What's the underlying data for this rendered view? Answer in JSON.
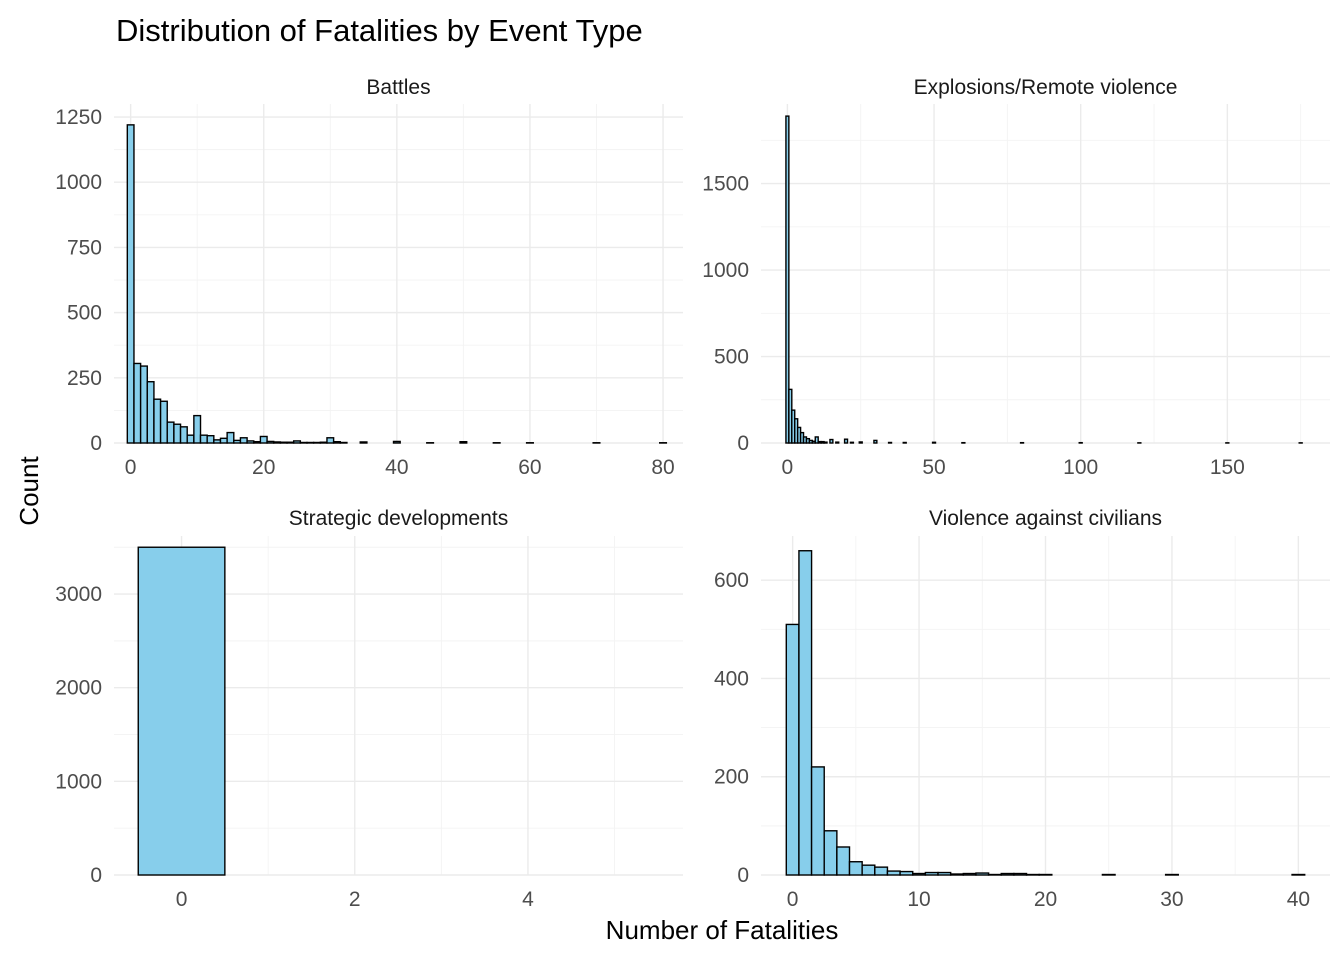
{
  "title": "Distribution of Fatalities by Event Type",
  "xlabel": "Number of Fatalities",
  "ylabel": "Count",
  "bar_fill": "#87CEEB",
  "bar_outline": "#000000",
  "chart_data": [
    {
      "type": "bar",
      "panel": "Battles",
      "binwidth": 1,
      "xlim": [
        -2.5,
        83
      ],
      "ylim": [
        0,
        1300
      ],
      "x_ticks": [
        0,
        20,
        40,
        60,
        80
      ],
      "y_ticks": [
        0,
        250,
        500,
        750,
        1000,
        1250
      ],
      "bins": [
        {
          "x": 0,
          "count": 1220
        },
        {
          "x": 1,
          "count": 305
        },
        {
          "x": 2,
          "count": 295
        },
        {
          "x": 3,
          "count": 235
        },
        {
          "x": 4,
          "count": 168
        },
        {
          "x": 5,
          "count": 160
        },
        {
          "x": 6,
          "count": 80
        },
        {
          "x": 7,
          "count": 72
        },
        {
          "x": 8,
          "count": 62
        },
        {
          "x": 9,
          "count": 30
        },
        {
          "x": 10,
          "count": 105
        },
        {
          "x": 11,
          "count": 30
        },
        {
          "x": 12,
          "count": 28
        },
        {
          "x": 13,
          "count": 12
        },
        {
          "x": 14,
          "count": 18
        },
        {
          "x": 15,
          "count": 40
        },
        {
          "x": 16,
          "count": 10
        },
        {
          "x": 17,
          "count": 20
        },
        {
          "x": 18,
          "count": 8
        },
        {
          "x": 19,
          "count": 5
        },
        {
          "x": 20,
          "count": 25
        },
        {
          "x": 21,
          "count": 6
        },
        {
          "x": 22,
          "count": 4
        },
        {
          "x": 23,
          "count": 3
        },
        {
          "x": 24,
          "count": 3
        },
        {
          "x": 25,
          "count": 8
        },
        {
          "x": 26,
          "count": 2
        },
        {
          "x": 27,
          "count": 2
        },
        {
          "x": 28,
          "count": 2
        },
        {
          "x": 29,
          "count": 3
        },
        {
          "x": 30,
          "count": 20
        },
        {
          "x": 31,
          "count": 5
        },
        {
          "x": 32,
          "count": 2
        },
        {
          "x": 35,
          "count": 4
        },
        {
          "x": 40,
          "count": 6
        },
        {
          "x": 45,
          "count": 1
        },
        {
          "x": 50,
          "count": 5
        },
        {
          "x": 55,
          "count": 1
        },
        {
          "x": 60,
          "count": 1
        },
        {
          "x": 70,
          "count": 1
        },
        {
          "x": 80,
          "count": 1
        }
      ]
    },
    {
      "type": "bar",
      "panel": "Explosions/Remote violence",
      "binwidth": 1,
      "xlim": [
        -9,
        185
      ],
      "ylim": [
        0,
        1960
      ],
      "x_ticks": [
        0,
        50,
        100,
        150
      ],
      "y_ticks": [
        0,
        500,
        1000,
        1500
      ],
      "bins": [
        {
          "x": 0,
          "count": 1890
        },
        {
          "x": 1,
          "count": 310
        },
        {
          "x": 2,
          "count": 190
        },
        {
          "x": 3,
          "count": 140
        },
        {
          "x": 4,
          "count": 90
        },
        {
          "x": 5,
          "count": 60
        },
        {
          "x": 6,
          "count": 35
        },
        {
          "x": 7,
          "count": 25
        },
        {
          "x": 8,
          "count": 15
        },
        {
          "x": 9,
          "count": 10
        },
        {
          "x": 10,
          "count": 35
        },
        {
          "x": 11,
          "count": 8
        },
        {
          "x": 12,
          "count": 8
        },
        {
          "x": 13,
          "count": 5
        },
        {
          "x": 15,
          "count": 20
        },
        {
          "x": 17,
          "count": 5
        },
        {
          "x": 20,
          "count": 22
        },
        {
          "x": 22,
          "count": 4
        },
        {
          "x": 25,
          "count": 6
        },
        {
          "x": 30,
          "count": 15
        },
        {
          "x": 35,
          "count": 3
        },
        {
          "x": 40,
          "count": 3
        },
        {
          "x": 50,
          "count": 4
        },
        {
          "x": 60,
          "count": 2
        },
        {
          "x": 80,
          "count": 2
        },
        {
          "x": 100,
          "count": 2
        },
        {
          "x": 120,
          "count": 1
        },
        {
          "x": 150,
          "count": 1
        },
        {
          "x": 175,
          "count": 1
        }
      ]
    },
    {
      "type": "bar",
      "panel": "Strategic developments",
      "binwidth": 1,
      "xlim": [
        -0.78,
        5.79
      ],
      "ylim": [
        0,
        3620
      ],
      "x_ticks": [
        0,
        2,
        4
      ],
      "y_ticks": [
        0,
        1000,
        2000,
        3000
      ],
      "bins": [
        {
          "x": 0,
          "count": 3500
        },
        {
          "x": 1,
          "count": 0
        },
        {
          "x": 2,
          "count": 0
        },
        {
          "x": 3,
          "count": 0
        },
        {
          "x": 4,
          "count": 0
        },
        {
          "x": 5,
          "count": 0
        }
      ]
    },
    {
      "type": "bar",
      "panel": "Violence against civilians",
      "binwidth": 1,
      "xlim": [
        -2.5,
        42.5
      ],
      "ylim": [
        0,
        690
      ],
      "x_ticks": [
        0,
        10,
        20,
        30,
        40
      ],
      "y_ticks": [
        0,
        200,
        400,
        600
      ],
      "bins": [
        {
          "x": 0,
          "count": 510
        },
        {
          "x": 1,
          "count": 660
        },
        {
          "x": 2,
          "count": 220
        },
        {
          "x": 3,
          "count": 90
        },
        {
          "x": 4,
          "count": 57
        },
        {
          "x": 5,
          "count": 27
        },
        {
          "x": 6,
          "count": 20
        },
        {
          "x": 7,
          "count": 16
        },
        {
          "x": 8,
          "count": 8
        },
        {
          "x": 9,
          "count": 7
        },
        {
          "x": 10,
          "count": 3
        },
        {
          "x": 11,
          "count": 5
        },
        {
          "x": 12,
          "count": 5
        },
        {
          "x": 13,
          "count": 2
        },
        {
          "x": 14,
          "count": 3
        },
        {
          "x": 15,
          "count": 4
        },
        {
          "x": 16,
          "count": 1
        },
        {
          "x": 17,
          "count": 3
        },
        {
          "x": 18,
          "count": 3
        },
        {
          "x": 19,
          "count": 1
        },
        {
          "x": 20,
          "count": 1
        },
        {
          "x": 25,
          "count": 1
        },
        {
          "x": 30,
          "count": 1
        },
        {
          "x": 40,
          "count": 1
        }
      ]
    }
  ]
}
